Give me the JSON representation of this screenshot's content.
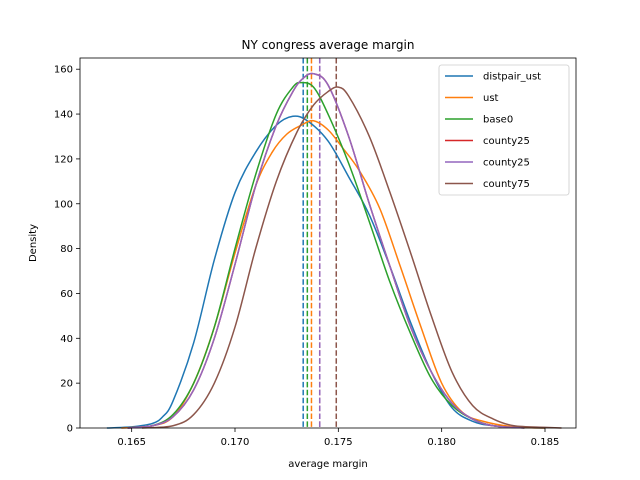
{
  "chart_data": {
    "type": "line",
    "title": "NY congress average margin",
    "xlabel": "average margin",
    "ylabel": "Density",
    "xlim": [
      0.1625,
      0.1865
    ],
    "ylim": [
      0,
      165
    ],
    "xticks": [
      0.165,
      0.17,
      0.175,
      0.18,
      0.185
    ],
    "xtick_labels": [
      "0.165",
      "0.170",
      "0.175",
      "0.180",
      "0.185"
    ],
    "yticks": [
      0,
      20,
      40,
      60,
      80,
      100,
      120,
      140,
      160
    ],
    "ytick_labels": [
      "0",
      "20",
      "40",
      "60",
      "80",
      "100",
      "120",
      "140",
      "160"
    ],
    "grid": false,
    "legend_position": "top-right",
    "series": [
      {
        "name": "distpair_ust",
        "color": "#1f77b4",
        "mean_line": 0.1733,
        "points": [
          [
            0.1638,
            0
          ],
          [
            0.165,
            0.5
          ],
          [
            0.166,
            2
          ],
          [
            0.1665,
            5
          ],
          [
            0.167,
            12
          ],
          [
            0.168,
            38
          ],
          [
            0.169,
            75
          ],
          [
            0.17,
            105
          ],
          [
            0.171,
            123
          ],
          [
            0.172,
            135
          ],
          [
            0.1728,
            139
          ],
          [
            0.1735,
            137
          ],
          [
            0.1745,
            128
          ],
          [
            0.1755,
            112
          ],
          [
            0.1765,
            95
          ],
          [
            0.1775,
            72
          ],
          [
            0.1785,
            47
          ],
          [
            0.1795,
            25
          ],
          [
            0.1805,
            9
          ],
          [
            0.1815,
            3
          ],
          [
            0.1825,
            1
          ],
          [
            0.184,
            0.2
          ],
          [
            0.185,
            0
          ]
        ]
      },
      {
        "name": "ust",
        "color": "#ff7f0e",
        "mean_line": 0.1737,
        "points": [
          [
            0.1645,
            0
          ],
          [
            0.166,
            1
          ],
          [
            0.167,
            5
          ],
          [
            0.168,
            20
          ],
          [
            0.169,
            45
          ],
          [
            0.17,
            78
          ],
          [
            0.171,
            108
          ],
          [
            0.1718,
            123
          ],
          [
            0.1725,
            131
          ],
          [
            0.1732,
            135
          ],
          [
            0.1738,
            137
          ],
          [
            0.1745,
            133
          ],
          [
            0.1752,
            125
          ],
          [
            0.176,
            115
          ],
          [
            0.177,
            98
          ],
          [
            0.178,
            72
          ],
          [
            0.179,
            45
          ],
          [
            0.18,
            20
          ],
          [
            0.181,
            7
          ],
          [
            0.182,
            3
          ],
          [
            0.1835,
            0.5
          ],
          [
            0.185,
            0
          ]
        ]
      },
      {
        "name": "base0",
        "color": "#2ca02c",
        "mean_line": 0.1735,
        "points": [
          [
            0.1648,
            0
          ],
          [
            0.166,
            1
          ],
          [
            0.167,
            6
          ],
          [
            0.168,
            20
          ],
          [
            0.169,
            45
          ],
          [
            0.17,
            80
          ],
          [
            0.171,
            113
          ],
          [
            0.172,
            140
          ],
          [
            0.1728,
            152
          ],
          [
            0.1732,
            154
          ],
          [
            0.1738,
            152
          ],
          [
            0.1745,
            140
          ],
          [
            0.1755,
            118
          ],
          [
            0.1765,
            92
          ],
          [
            0.1775,
            65
          ],
          [
            0.1785,
            42
          ],
          [
            0.1795,
            22
          ],
          [
            0.1805,
            10
          ],
          [
            0.1815,
            4
          ],
          [
            0.1825,
            1
          ],
          [
            0.184,
            0
          ]
        ]
      },
      {
        "name": "county25",
        "color": "#d62728",
        "mean_line": 0.1741,
        "points": [
          [
            0.1648,
            0
          ],
          [
            0.166,
            1
          ],
          [
            0.167,
            5
          ],
          [
            0.168,
            17
          ],
          [
            0.169,
            40
          ],
          [
            0.17,
            73
          ],
          [
            0.171,
            108
          ],
          [
            0.172,
            135
          ],
          [
            0.1728,
            150
          ],
          [
            0.1733,
            156
          ],
          [
            0.1738,
            158
          ],
          [
            0.1745,
            153
          ],
          [
            0.1755,
            130
          ],
          [
            0.1765,
            100
          ],
          [
            0.1775,
            72
          ],
          [
            0.1785,
            45
          ],
          [
            0.1795,
            25
          ],
          [
            0.1805,
            11
          ],
          [
            0.1815,
            4
          ],
          [
            0.1825,
            1
          ],
          [
            0.184,
            0
          ]
        ]
      },
      {
        "name": "county25",
        "color": "#9467bd",
        "mean_line": 0.1741,
        "points": [
          [
            0.1648,
            0
          ],
          [
            0.166,
            1
          ],
          [
            0.167,
            5
          ],
          [
            0.168,
            17
          ],
          [
            0.169,
            40
          ],
          [
            0.17,
            73
          ],
          [
            0.171,
            108
          ],
          [
            0.172,
            135
          ],
          [
            0.1728,
            150
          ],
          [
            0.1733,
            156
          ],
          [
            0.1738,
            158
          ],
          [
            0.1745,
            153
          ],
          [
            0.1755,
            130
          ],
          [
            0.1765,
            100
          ],
          [
            0.1775,
            72
          ],
          [
            0.1785,
            45
          ],
          [
            0.1795,
            25
          ],
          [
            0.1805,
            11
          ],
          [
            0.1815,
            4
          ],
          [
            0.1825,
            1
          ],
          [
            0.184,
            0
          ]
        ]
      },
      {
        "name": "county75",
        "color": "#8c564b",
        "mean_line": 0.1749,
        "points": [
          [
            0.1655,
            0
          ],
          [
            0.167,
            1
          ],
          [
            0.168,
            6
          ],
          [
            0.169,
            20
          ],
          [
            0.17,
            45
          ],
          [
            0.171,
            80
          ],
          [
            0.172,
            110
          ],
          [
            0.173,
            132
          ],
          [
            0.1738,
            144
          ],
          [
            0.1745,
            150
          ],
          [
            0.175,
            152
          ],
          [
            0.1755,
            148
          ],
          [
            0.1765,
            130
          ],
          [
            0.1775,
            105
          ],
          [
            0.1785,
            78
          ],
          [
            0.1795,
            50
          ],
          [
            0.1805,
            25
          ],
          [
            0.1815,
            10
          ],
          [
            0.1825,
            4
          ],
          [
            0.1835,
            1
          ],
          [
            0.185,
            0.3
          ],
          [
            0.1858,
            0
          ]
        ]
      }
    ]
  }
}
